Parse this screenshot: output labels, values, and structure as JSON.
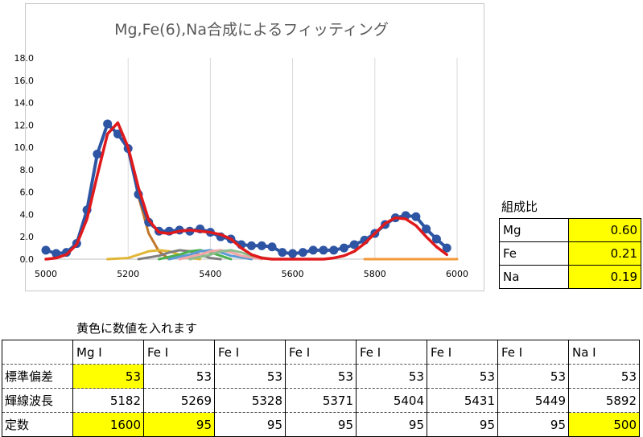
{
  "chart_data": {
    "type": "line",
    "title": "Mg,Fe(6),Na合成によるフィッティング",
    "xlim": [
      5000,
      6000
    ],
    "ylim": [
      0,
      18
    ],
    "x_ticks": [
      "5000",
      "5200",
      "5400",
      "5600",
      "5800",
      "6000"
    ],
    "y_ticks": [
      "0.0",
      "2.0",
      "4.0",
      "6.0",
      "8.0",
      "10.0",
      "12.0",
      "14.0",
      "16.0",
      "18.0"
    ],
    "grid": "vertical",
    "legend": "none",
    "series": [
      {
        "kind": "measured",
        "color": "#2e55a4",
        "x": [
          5000,
          5025,
          5050,
          5075,
          5100,
          5125,
          5150,
          5175,
          5200,
          5225,
          5250,
          5275,
          5300,
          5325,
          5350,
          5375,
          5400,
          5425,
          5450,
          5475,
          5500,
          5525,
          5550,
          5575,
          5600,
          5625,
          5650,
          5675,
          5700,
          5725,
          5750,
          5775,
          5800,
          5825,
          5850,
          5875,
          5900,
          5925,
          5950,
          5975
        ],
        "y": [
          0.8,
          0.5,
          0.6,
          1.4,
          4.4,
          9.4,
          12.1,
          11.2,
          9.9,
          5.8,
          3.3,
          2.5,
          2.5,
          2.6,
          2.5,
          2.7,
          2.4,
          2.0,
          1.8,
          1.3,
          1.2,
          1.2,
          1.1,
          0.6,
          0.5,
          0.6,
          0.8,
          0.8,
          0.8,
          1.0,
          1.3,
          1.7,
          2.3,
          3.1,
          3.7,
          3.9,
          3.8,
          2.7,
          1.8,
          1.0
        ]
      },
      {
        "kind": "fit",
        "color": "#e0191c",
        "x": [
          5000,
          5025,
          5050,
          5075,
          5100,
          5125,
          5150,
          5175,
          5200,
          5225,
          5250,
          5275,
          5300,
          5325,
          5350,
          5375,
          5400,
          5425,
          5450,
          5475,
          5500,
          5525,
          5550,
          5575,
          5600,
          5625,
          5650,
          5675,
          5700,
          5725,
          5750,
          5775,
          5800,
          5825,
          5850,
          5875,
          5900,
          5925,
          5950,
          5975
        ],
        "y": [
          0.0,
          0.1,
          0.4,
          1.3,
          3.6,
          7.5,
          11.2,
          12.2,
          10.0,
          6.4,
          3.5,
          2.4,
          2.3,
          2.5,
          2.6,
          2.5,
          2.4,
          2.2,
          1.8,
          1.0,
          0.4,
          0.1,
          0.0,
          0.0,
          0.0,
          0.0,
          0.0,
          0.0,
          0.1,
          0.3,
          0.7,
          1.4,
          2.3,
          3.2,
          3.7,
          3.6,
          3.0,
          2.0,
          1.1,
          0.4
        ]
      },
      {
        "kind": "component",
        "name": "Mg I",
        "color": "#c0752b",
        "x": [
          5050,
          5075,
          5100,
          5125,
          5150,
          5175,
          5200,
          5225,
          5250,
          5275,
          5300
        ],
        "y": [
          0.4,
          1.3,
          3.6,
          7.5,
          11.2,
          12.2,
          9.9,
          5.6,
          2.3,
          0.7,
          0.0
        ]
      },
      {
        "kind": "component",
        "name": "Fe I 5269",
        "color": "#e0b637",
        "x": [
          5150,
          5200,
          5225,
          5250,
          5275,
          5300,
          5325,
          5350,
          5375
        ],
        "y": [
          0.0,
          0.1,
          0.4,
          0.7,
          0.8,
          0.7,
          0.4,
          0.1,
          0.0
        ]
      },
      {
        "kind": "component",
        "name": "Fe I 5328",
        "color": "#7f7f7f",
        "x": [
          5225,
          5275,
          5300,
          5325,
          5350,
          5375,
          5400,
          5425
        ],
        "y": [
          0.0,
          0.3,
          0.6,
          0.8,
          0.7,
          0.4,
          0.1,
          0.0
        ]
      },
      {
        "kind": "component",
        "name": "Fe I 5371",
        "color": "#4caf50",
        "x": [
          5275,
          5325,
          5350,
          5375,
          5400,
          5425,
          5450
        ],
        "y": [
          0.0,
          0.4,
          0.7,
          0.8,
          0.6,
          0.3,
          0.0
        ]
      },
      {
        "kind": "component",
        "name": "Fe I 5404",
        "color": "#5b9bd5",
        "x": [
          5300,
          5350,
          5375,
          5400,
          5425,
          5450,
          5500
        ],
        "y": [
          0.0,
          0.4,
          0.7,
          0.8,
          0.6,
          0.3,
          0.0
        ]
      },
      {
        "kind": "component",
        "name": "Fe I 5431",
        "color": "#f4a6a6",
        "x": [
          5325,
          5375,
          5400,
          5425,
          5450,
          5475,
          5525
        ],
        "y": [
          0.0,
          0.4,
          0.7,
          0.8,
          0.6,
          0.3,
          0.0
        ]
      },
      {
        "kind": "component",
        "name": "Fe I 5449",
        "color": "#8fbc8f",
        "x": [
          5350,
          5400,
          5425,
          5450,
          5475,
          5500,
          5550
        ],
        "y": [
          0.0,
          0.4,
          0.7,
          0.8,
          0.6,
          0.3,
          0.0
        ]
      },
      {
        "kind": "component",
        "name": "Na I",
        "color": "#f29a3a",
        "x": [
          5775,
          5800,
          5825,
          5850,
          5875,
          5900,
          5925,
          5950,
          5975,
          6000
        ],
        "y": [
          0.0,
          0.0,
          0.0,
          0.0,
          0.0,
          0.0,
          0.0,
          0.0,
          0.0,
          0.0
        ]
      }
    ]
  },
  "ratio": {
    "title": "組成比",
    "rows": [
      {
        "name": "Mg",
        "value": "0.60"
      },
      {
        "name": "Fe",
        "value": "0.21"
      },
      {
        "name": "Na",
        "value": "0.19"
      }
    ]
  },
  "note": "黄色に数値を入れます",
  "params": {
    "headers": [
      "Mg I",
      "Fe I",
      "Fe I",
      "Fe I",
      "Fe I",
      "Fe I",
      "Fe I",
      "Na I"
    ],
    "rows": [
      {
        "label": "標準偏差",
        "values": [
          "53",
          "53",
          "53",
          "53",
          "53",
          "53",
          "53",
          "53"
        ],
        "yellow": [
          true,
          false,
          false,
          false,
          false,
          false,
          false,
          false
        ]
      },
      {
        "label": "輝線波長",
        "values": [
          "5182",
          "5269",
          "5328",
          "5371",
          "5404",
          "5431",
          "5449",
          "5892"
        ],
        "yellow": [
          false,
          false,
          false,
          false,
          false,
          false,
          false,
          false
        ]
      },
      {
        "label": "定数",
        "values": [
          "1600",
          "95",
          "95",
          "95",
          "95",
          "95",
          "95",
          "500"
        ],
        "yellow": [
          true,
          true,
          false,
          false,
          false,
          false,
          false,
          true
        ]
      }
    ]
  }
}
